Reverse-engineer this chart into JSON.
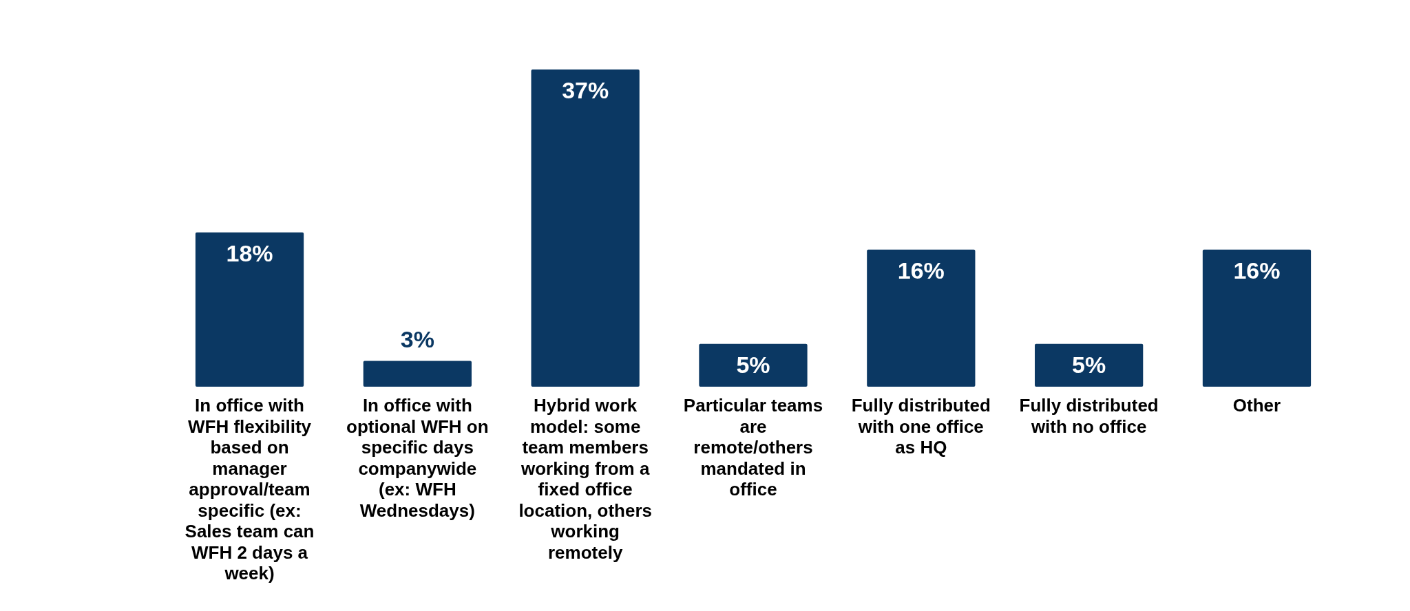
{
  "chart_data": {
    "type": "bar",
    "categories": [
      "In office with WFH flexibility based on manager approval/team specific (ex: Sales team can WFH 2 days a week)",
      "In office with optional WFH on specific days companywide (ex: WFH Wednesdays)",
      "Hybrid work model: some team members working from a fixed office location, others working remotely",
      "Particular teams are remote/others mandated in office",
      "Fully distributed with one office as HQ",
      "Fully distributed with no office",
      "Other"
    ],
    "values": [
      18,
      3,
      37,
      5,
      16,
      5,
      16
    ],
    "value_labels": [
      "18%",
      "3%",
      "37%",
      "5%",
      "16%",
      "5%",
      "16%"
    ],
    "color": "#0b3863"
  }
}
